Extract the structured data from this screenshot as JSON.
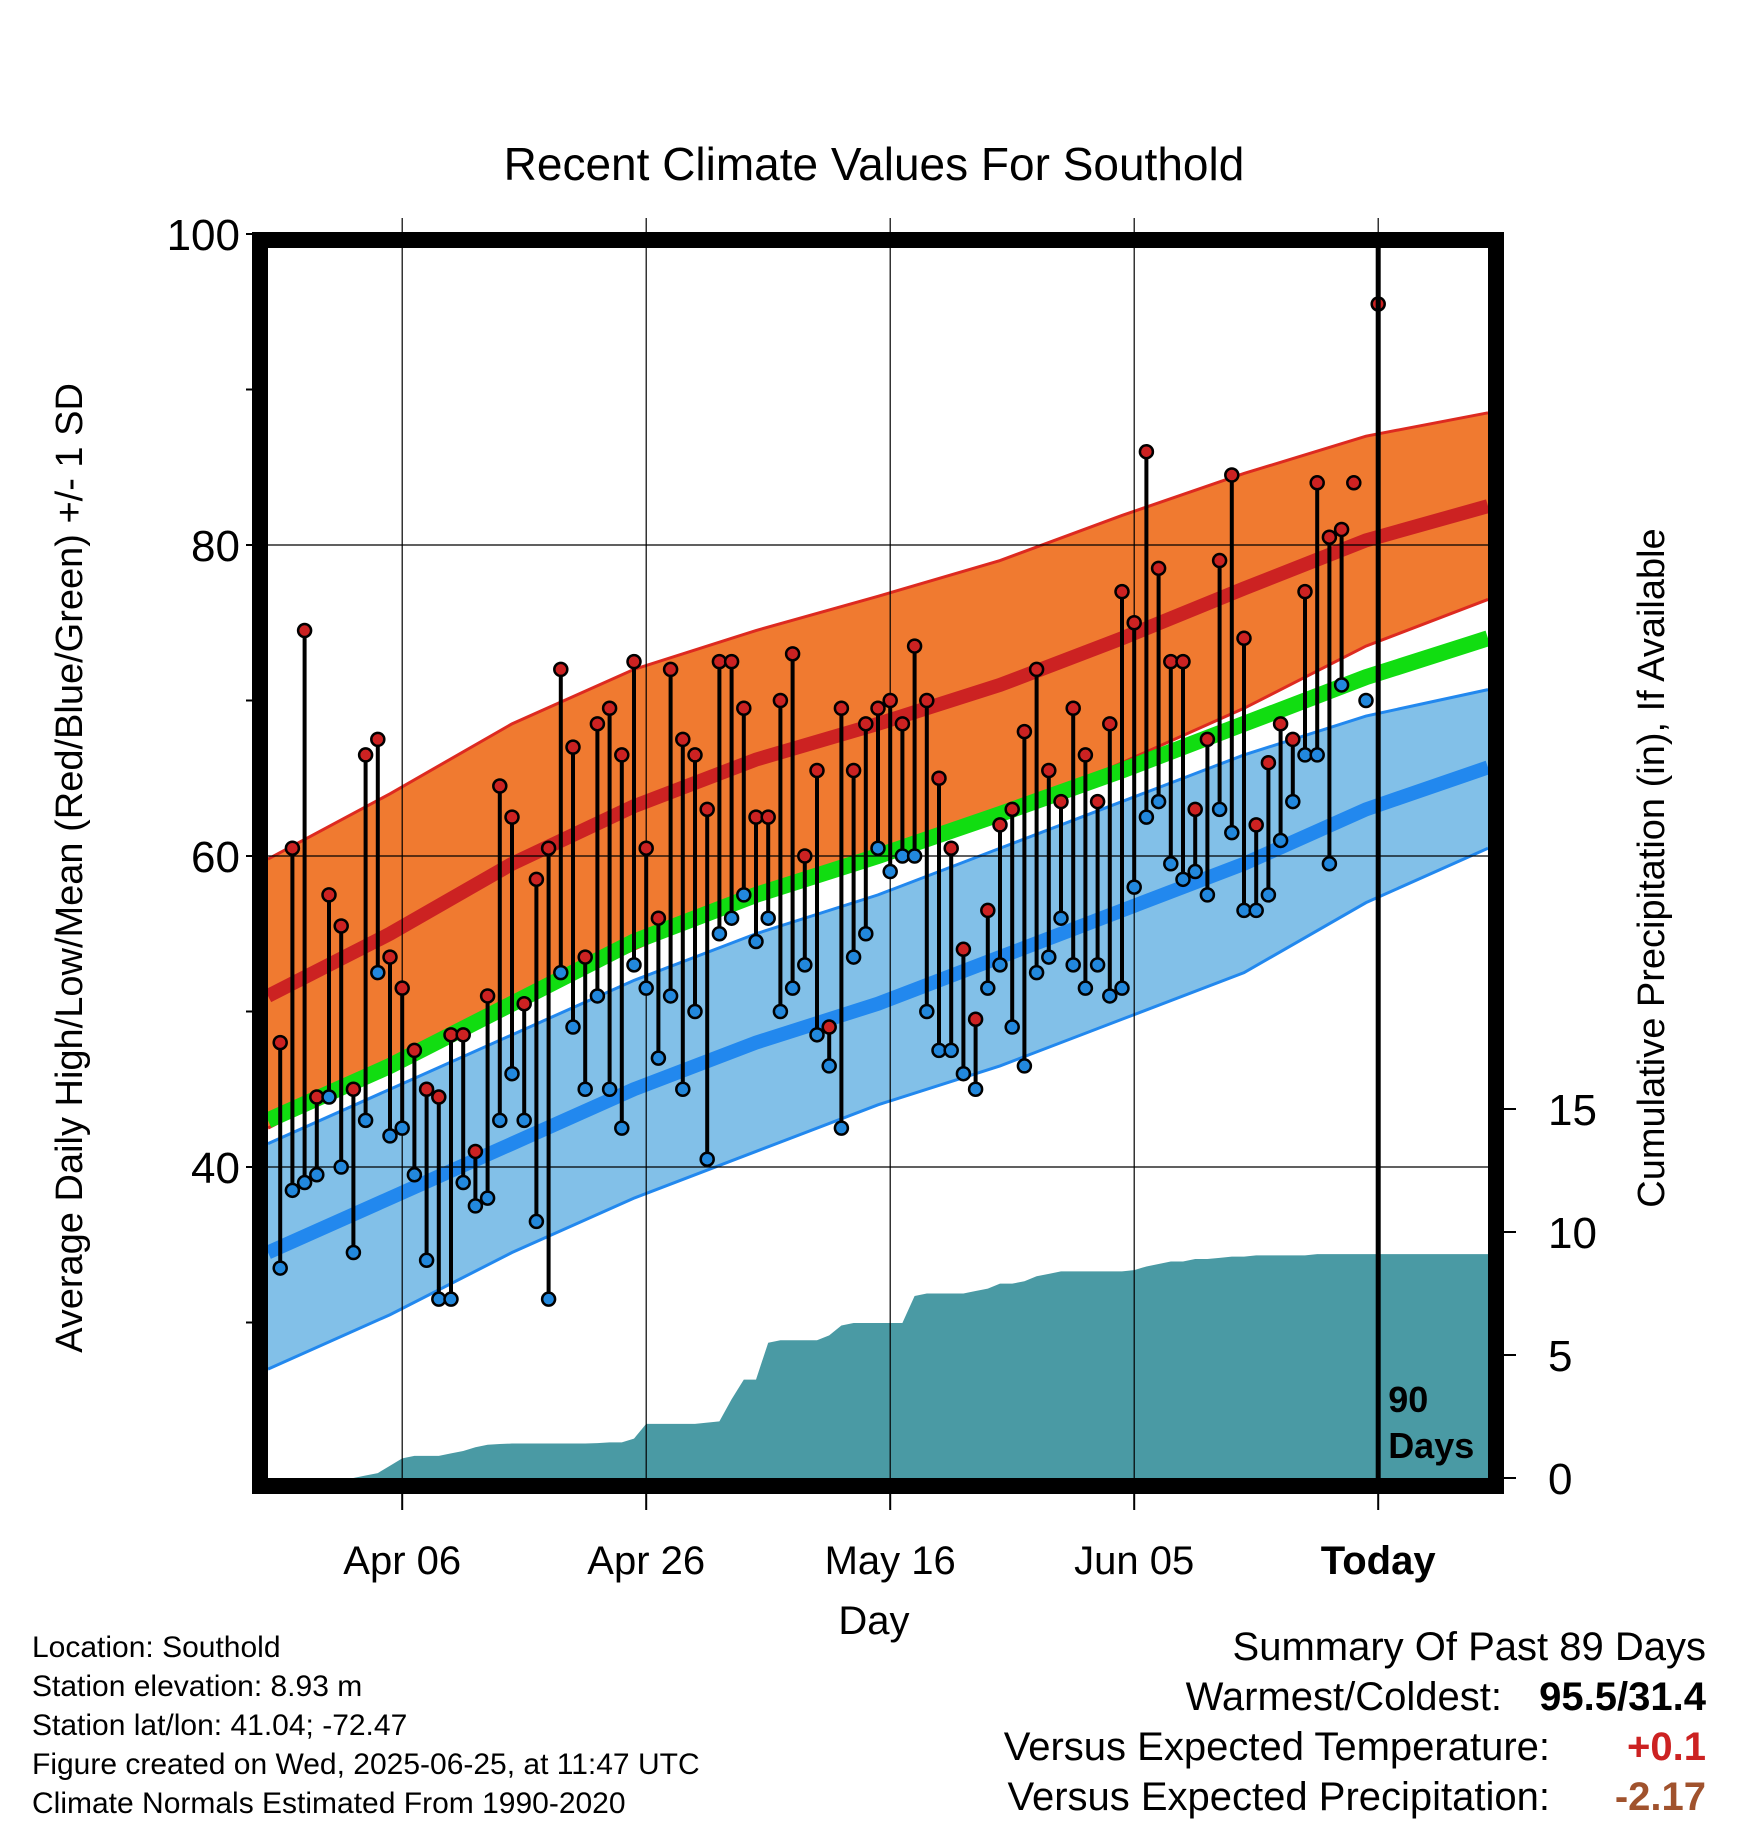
{
  "chart_data": {
    "type": "line",
    "title": "Recent Climate Values For Southold",
    "xlabel": "Day",
    "ylabel": "Average Daily High/Low/Mean (Red/Blue/Green) +/- 1 SD",
    "y2label": "Cumulative Precipitation (in), If Available",
    "ylim": [
      20,
      100
    ],
    "y2lim": [
      0,
      40
    ],
    "y_ticks": [
      "40",
      "60",
      "80",
      "100"
    ],
    "y2_ticks": [
      "0",
      "5",
      "10",
      "15"
    ],
    "x_ticks": [
      {
        "label": "Apr 06",
        "day": 11
      },
      {
        "label": "Apr 26",
        "day": 31
      },
      {
        "label": "May 16",
        "day": 51
      },
      {
        "label": "Jun 05",
        "day": 71
      },
      {
        "label": "Today",
        "day": 91
      }
    ],
    "x_range": [
      0,
      100
    ],
    "today_marker": {
      "day": 91,
      "label_line1": "90",
      "label_line2": "Days"
    },
    "normals": {
      "days": [
        0,
        10,
        20,
        30,
        40,
        50,
        60,
        70,
        80,
        90,
        100
      ],
      "high": [
        51,
        55,
        59.5,
        63.2,
        66.2,
        68.5,
        71,
        74,
        77.2,
        80.3,
        82.5
      ],
      "high_upper": [
        59.8,
        64,
        68.5,
        72,
        74.5,
        76.7,
        79,
        81.9,
        84.6,
        87,
        88.5
      ],
      "high_lower": [
        42.5,
        46.5,
        50.5,
        54,
        57.5,
        60,
        62.5,
        66,
        69.5,
        73.5,
        76.5
      ],
      "mean": [
        43,
        46.5,
        50.5,
        54.5,
        57.5,
        60,
        62.7,
        65.5,
        68.5,
        71.5,
        74
      ],
      "low": [
        34.5,
        38,
        41.5,
        45,
        48,
        50.5,
        53.5,
        56.5,
        59.5,
        63,
        65.7
      ],
      "low_upper": [
        41.5,
        45,
        48.5,
        52,
        55,
        57.5,
        60.5,
        63.5,
        66.5,
        69,
        70.7
      ],
      "low_lower": [
        27,
        30.5,
        34.5,
        38,
        41,
        44,
        46.5,
        49.5,
        52.5,
        57,
        60.5
      ]
    },
    "series": [
      {
        "name": "High",
        "color": "#cc2222",
        "values": [
          48,
          60.5,
          74.5,
          44.5,
          57.5,
          55.5,
          45,
          66.5,
          67.5,
          53.5,
          51.5,
          47.5,
          45,
          44.5,
          48.5,
          48.5,
          41,
          51,
          64.5,
          62.5,
          50.5,
          58.5,
          60.5,
          72,
          67,
          53.5,
          68.5,
          69.5,
          66.5,
          72.5,
          60.5,
          56,
          72,
          67.5,
          66.5,
          63,
          72.5,
          72.5,
          69.5,
          62.5,
          62.5,
          70,
          73,
          60,
          65.5,
          49,
          69.5,
          65.5,
          68.5,
          69.5,
          70,
          68.5,
          73.5,
          70,
          65,
          60.5,
          54,
          49.5,
          56.5,
          62,
          63,
          68,
          72,
          65.5,
          63.5,
          69.5,
          66.5,
          63.5,
          68.5,
          77,
          75,
          86,
          78.5,
          72.5,
          72.5,
          63,
          67.5,
          79,
          84.5,
          74,
          62,
          66,
          68.5,
          67.5,
          77,
          84,
          80.5,
          81,
          84,
          null,
          95.5
        ]
      },
      {
        "name": "Low",
        "color": "#2288dd",
        "values": [
          33.5,
          38.5,
          39,
          39.5,
          44.5,
          40,
          34.5,
          43,
          52.5,
          42,
          42.5,
          39.5,
          34,
          31.5,
          31.5,
          39,
          37.5,
          38,
          43,
          46,
          43,
          36.5,
          31.5,
          52.5,
          49,
          45,
          51,
          45,
          42.5,
          53,
          51.5,
          47,
          51,
          45,
          50,
          40.5,
          55,
          56,
          57.5,
          54.5,
          56,
          50,
          51.5,
          53,
          48.5,
          46.5,
          42.5,
          53.5,
          55,
          60.5,
          59,
          60,
          60,
          50,
          47.5,
          47.5,
          46,
          45,
          51.5,
          53,
          49,
          46.5,
          52.5,
          53.5,
          56,
          53,
          51.5,
          53,
          51,
          51.5,
          58,
          62.5,
          63.5,
          59.5,
          58.5,
          59,
          57.5,
          63,
          61.5,
          56.5,
          56.5,
          57.5,
          61,
          63.5,
          66.5,
          66.5,
          59.5,
          71,
          null,
          70
        ]
      }
    ],
    "precip": {
      "days": [
        0,
        7,
        8,
        9,
        10,
        11,
        12,
        13,
        14,
        15,
        16,
        17,
        18,
        19,
        20,
        25,
        26,
        27,
        28,
        29,
        30,
        31,
        32,
        33,
        34,
        35,
        36,
        37,
        38,
        39,
        40,
        41,
        42,
        43,
        44,
        45,
        46,
        47,
        48,
        49,
        50,
        51,
        52,
        53,
        54,
        55,
        56,
        57,
        58,
        59,
        60,
        61,
        62,
        63,
        64,
        65,
        66,
        67,
        68,
        69,
        70,
        71,
        72,
        73,
        74,
        75,
        76,
        77,
        78,
        79,
        80,
        81,
        82,
        83,
        84,
        85,
        86,
        87,
        88,
        89,
        90,
        91,
        100
      ],
      "values": [
        0,
        0,
        0.1,
        0.2,
        0.5,
        0.8,
        0.9,
        0.9,
        0.9,
        1.0,
        1.1,
        1.25,
        1.35,
        1.38,
        1.4,
        1.4,
        1.4,
        1.42,
        1.45,
        1.45,
        1.6,
        2.2,
        2.2,
        2.2,
        2.2,
        2.2,
        2.25,
        2.3,
        3.2,
        4,
        4,
        5.5,
        5.6,
        5.6,
        5.6,
        5.6,
        5.8,
        6.2,
        6.3,
        6.3,
        6.3,
        6.3,
        6.3,
        7.4,
        7.5,
        7.5,
        7.5,
        7.5,
        7.6,
        7.7,
        7.9,
        7.9,
        8.0,
        8.2,
        8.3,
        8.4,
        8.4,
        8.4,
        8.4,
        8.4,
        8.4,
        8.45,
        8.6,
        8.7,
        8.8,
        8.8,
        8.9,
        8.9,
        8.95,
        9.0,
        9.0,
        9.05,
        9.05,
        9.05,
        9.05,
        9.05,
        9.1,
        9.1,
        9.1,
        9.1,
        9.1,
        9.1,
        9.1
      ]
    },
    "colors": {
      "high_band": "#f07a30",
      "high_band_edge": "#dd2a20",
      "high_line": "#cc2222",
      "mean_line": "#11dd11",
      "low_band": "#82c0e8",
      "low_band_edge": "#2288ee",
      "low_line": "#2288ee",
      "precip": "#4a9aa4",
      "frame": "#000000"
    }
  },
  "summary": {
    "title": "Summary Of Past 89 Days",
    "warmest_label": "Warmest/Coldest:",
    "warmest_value": "95.5/31.4",
    "temp_label": "Versus Expected Temperature:",
    "temp_value": "+0.1",
    "temp_color": "#cc2222",
    "precip_label": "Versus Expected Precipitation:",
    "precip_value": "-2.17",
    "precip_color": "#a0522d"
  },
  "info": {
    "location": "Location: Southold",
    "elevation": "Station elevation: 8.93 m",
    "latlon": "Station lat/lon: 41.04; -72.47",
    "created": "Figure created on Wed, 2025-06-25, at 11:47 UTC",
    "normals": "Climate Normals Estimated From 1990-2020"
  }
}
